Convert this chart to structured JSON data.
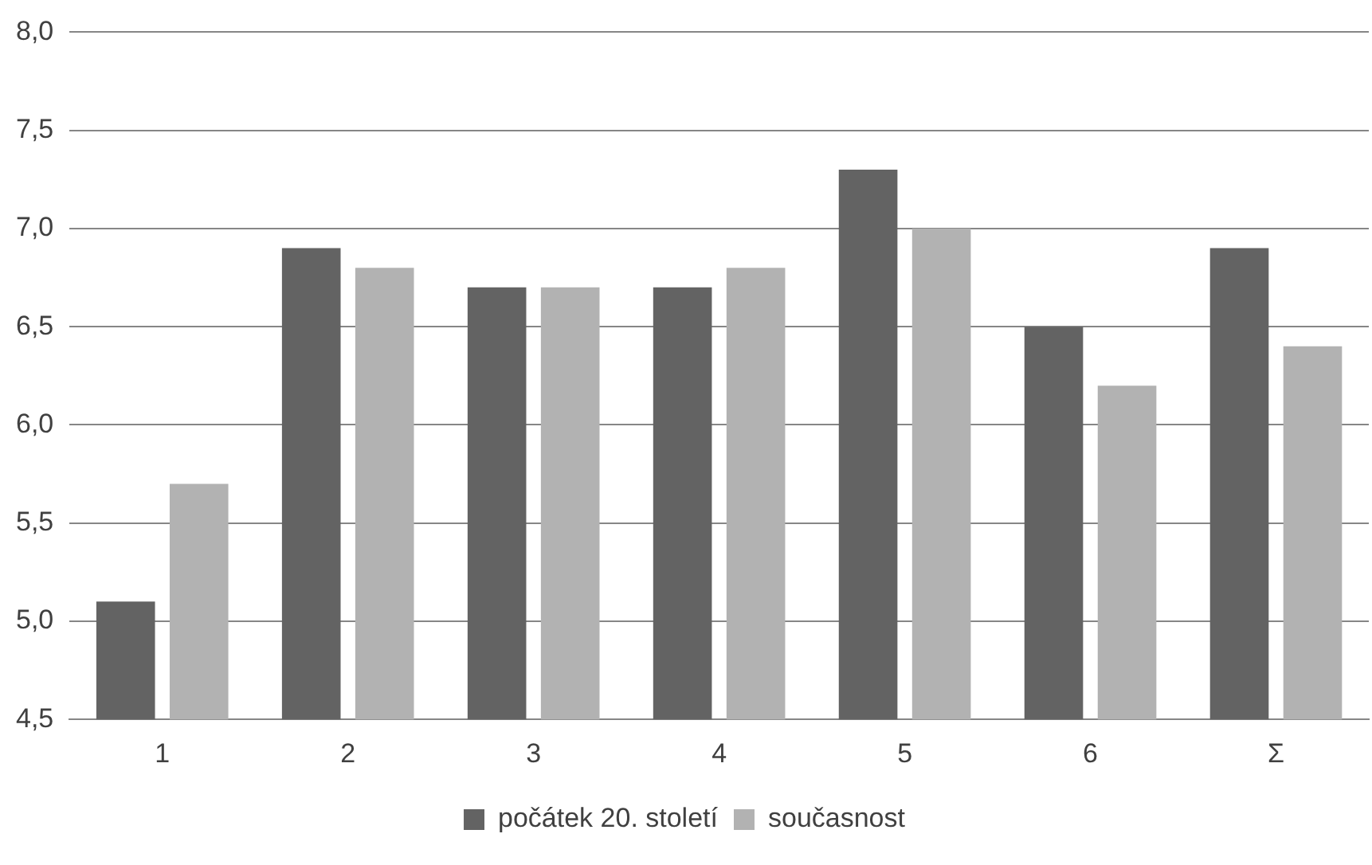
{
  "chart_data": {
    "type": "bar",
    "categories": [
      "1",
      "2",
      "3",
      "4",
      "5",
      "6",
      "Σ"
    ],
    "series": [
      {
        "name": "počátek 20. století",
        "color": "#636363",
        "values": [
          5.1,
          6.9,
          6.7,
          6.7,
          7.3,
          6.5,
          6.9
        ]
      },
      {
        "name": "současnost",
        "color": "#b2b2b2",
        "values": [
          5.7,
          6.8,
          6.7,
          6.8,
          7.0,
          6.2,
          6.4
        ]
      }
    ],
    "ylim": [
      4.5,
      8.0
    ],
    "yticks": [
      {
        "value": 4.5,
        "label": "4,5"
      },
      {
        "value": 5.0,
        "label": "5,0"
      },
      {
        "value": 5.5,
        "label": "5,5"
      },
      {
        "value": 6.0,
        "label": "6,0"
      },
      {
        "value": 6.5,
        "label": "6,5"
      },
      {
        "value": 7.0,
        "label": "7,0"
      },
      {
        "value": 7.5,
        "label": "7,5"
      },
      {
        "value": 8.0,
        "label": "8,0"
      }
    ],
    "grid": "y",
    "legend": "bottom"
  }
}
